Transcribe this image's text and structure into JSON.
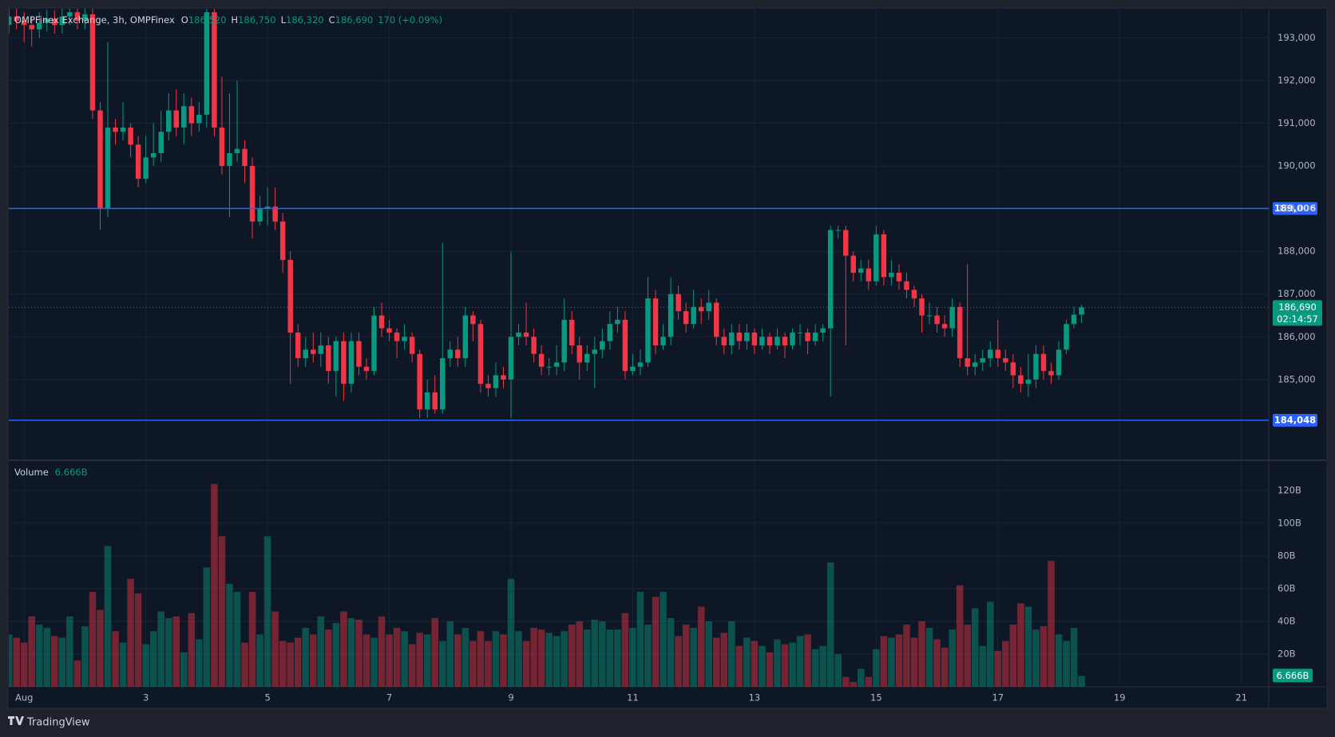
{
  "chart_data": {
    "type": "candlestick",
    "symbol": "OMPFinex Exchange, 3h, OMPFinex",
    "ohlc_labels": [
      {
        "key": "O",
        "text": "186,520"
      },
      {
        "key": "H",
        "text": "186,750"
      },
      {
        "key": "L",
        "text": "186,320"
      },
      {
        "key": "C",
        "text": "186,690"
      }
    ],
    "change": "170 (+0.09%)",
    "volume_title": "Volume",
    "volume_label": "6.666B",
    "last_price_label": "186,690",
    "countdown": "02:14:57",
    "brand": "TradingView",
    "up_color": "#089981",
    "down_color": "#f23645",
    "xlim": [
      0.748,
      21.45
    ],
    "xticks": [
      {
        "value": 1,
        "label": "Aug"
      },
      3,
      5,
      7,
      9,
      11,
      13,
      15,
      17,
      19,
      21
    ],
    "ylim": [
      183130,
      193680
    ],
    "yticks": [
      {
        "value": 185000,
        "label": "185,000"
      },
      {
        "value": 186000,
        "label": "186,000"
      },
      {
        "value": 187000,
        "label": "187,000"
      },
      {
        "value": 188000,
        "label": "188,000"
      },
      {
        "value": 189000,
        "label": "189,000"
      },
      {
        "value": 190000,
        "label": "190,000"
      },
      {
        "value": 191000,
        "label": "191,000"
      },
      {
        "value": 192000,
        "label": "192,000"
      },
      {
        "value": 193000,
        "label": "193,000"
      }
    ],
    "volume_ylim": [
      0,
      138
    ],
    "volume_yticks": [
      {
        "value": 20,
        "label": "20B"
      },
      {
        "value": 40,
        "label": "40B"
      },
      {
        "value": 60,
        "label": "60B"
      },
      {
        "value": 80,
        "label": "80B"
      },
      {
        "value": 100,
        "label": "100B"
      },
      {
        "value": 120,
        "label": "120B"
      }
    ],
    "levels": [
      {
        "value": 189006,
        "label": "189,006",
        "color": "#2962ff"
      },
      {
        "value": 184048,
        "label": "184,048",
        "color": "#2962ff"
      }
    ],
    "grid": true,
    "x": [
      0.75,
      0.875,
      1,
      1.125,
      1.25,
      1.375,
      1.5,
      1.625,
      1.75,
      1.875,
      2,
      2.125,
      2.25,
      2.375,
      2.5,
      2.625,
      2.75,
      2.875,
      3,
      3.125,
      3.25,
      3.375,
      3.5,
      3.625,
      3.75,
      3.875,
      4,
      4.125,
      4.25,
      4.375,
      4.5,
      4.625,
      4.75,
      4.875,
      5,
      5.125,
      5.25,
      5.375,
      5.5,
      5.625,
      5.75,
      5.875,
      6,
      6.125,
      6.25,
      6.375,
      6.5,
      6.625,
      6.75,
      6.875,
      7,
      7.125,
      7.25,
      7.375,
      7.5,
      7.625,
      7.75,
      7.875,
      8,
      8.125,
      8.25,
      8.375,
      8.5,
      8.625,
      8.75,
      8.875,
      9,
      9.125,
      9.25,
      9.375,
      9.5,
      9.625,
      9.75,
      9.875,
      10,
      10.125,
      10.25,
      10.375,
      10.5,
      10.625,
      10.75,
      10.875,
      11,
      11.125,
      11.25,
      11.375,
      11.5,
      11.625,
      11.75,
      11.875,
      12,
      12.125,
      12.25,
      12.375,
      12.5,
      12.625,
      12.75,
      12.875,
      13,
      13.125,
      13.25,
      13.375,
      13.5,
      13.625,
      13.75,
      13.875,
      14,
      14.125,
      14.25,
      14.375,
      14.5,
      14.625,
      14.75,
      14.875,
      15,
      15.125,
      15.25,
      15.375,
      15.5,
      15.625,
      15.75,
      15.875,
      16,
      16.125,
      16.25,
      16.375,
      16.5,
      16.625,
      16.75,
      16.875,
      17,
      17.125,
      17.25,
      17.375,
      17.5,
      17.625,
      17.75,
      17.875,
      18,
      18.125,
      18.25,
      18.375
    ],
    "open": [
      193300,
      193500,
      193400,
      193300,
      193200,
      193350,
      193450,
      193300,
      193500,
      193600,
      193400,
      193550,
      191300,
      189000,
      190900,
      190800,
      190900,
      190500,
      189700,
      190200,
      190300,
      190800,
      191300,
      190900,
      191400,
      191000,
      191200,
      193600,
      190900,
      190000,
      190300,
      190400,
      190000,
      188700,
      189000,
      189050,
      188700,
      187800,
      186100,
      185500,
      185700,
      185600,
      185800,
      185200,
      185900,
      184900,
      185900,
      185300,
      185200,
      186500,
      186200,
      186100,
      185900,
      186000,
      185600,
      184300,
      184700,
      184300,
      185500,
      185700,
      185500,
      186500,
      186300,
      184900,
      184800,
      185100,
      185000,
      186000,
      186100,
      186000,
      185600,
      185300,
      185300,
      185400,
      186400,
      185800,
      185400,
      185600,
      185700,
      185900,
      186300,
      186400,
      185200,
      185300,
      185400,
      186900,
      185800,
      186000,
      187000,
      186600,
      186300,
      186700,
      186600,
      186800,
      186000,
      185800,
      186100,
      185900,
      186100,
      185800,
      186000,
      185800,
      186000,
      185800,
      186100,
      186100,
      185900,
      186100,
      186200,
      188500,
      188500,
      187900,
      187500,
      187600,
      187300,
      188400,
      187400,
      187500,
      187300,
      187100,
      186900,
      186500,
      186500,
      186300,
      186200,
      186700,
      185500,
      185300,
      185400,
      185500,
      185700,
      185500,
      185400,
      185100,
      184900,
      185000,
      185600,
      185200,
      185100,
      185700,
      186300,
      186520
    ],
    "high": [
      193700,
      193700,
      193600,
      193500,
      193600,
      193650,
      193650,
      193700,
      193800,
      193800,
      193750,
      193750,
      191500,
      192900,
      191100,
      191500,
      191000,
      190700,
      190700,
      191000,
      191300,
      191700,
      191800,
      191700,
      191600,
      191500,
      193800,
      193800,
      192100,
      191700,
      192000,
      190600,
      190200,
      189300,
      189500,
      189500,
      188900,
      188000,
      186300,
      186000,
      186100,
      186100,
      186000,
      186000,
      186100,
      186100,
      186100,
      185500,
      186700,
      186800,
      186400,
      186200,
      186300,
      186100,
      185700,
      185000,
      185100,
      188200,
      185900,
      186000,
      186700,
      186600,
      186400,
      185100,
      185400,
      185300,
      188000,
      186300,
      186800,
      186200,
      185800,
      185500,
      185800,
      186900,
      186600,
      186000,
      185800,
      186000,
      186200,
      186600,
      186700,
      186600,
      185600,
      185700,
      187400,
      187100,
      186300,
      187400,
      187200,
      186800,
      187100,
      186900,
      187100,
      186900,
      186200,
      186300,
      186300,
      186300,
      186200,
      186200,
      186100,
      186200,
      186100,
      186200,
      186300,
      186200,
      186300,
      186300,
      188600,
      188600,
      188600,
      188000,
      187800,
      187800,
      188600,
      188500,
      187800,
      187700,
      187500,
      187200,
      187000,
      186800,
      186700,
      186500,
      186900,
      186800,
      187700,
      185600,
      185700,
      185900,
      186400,
      185700,
      185600,
      185300,
      185600,
      185800,
      185800,
      185400,
      185900,
      186400,
      186700,
      186750
    ],
    "low": [
      193100,
      193200,
      192900,
      192800,
      193000,
      193150,
      193100,
      193100,
      193300,
      193200,
      193200,
      191100,
      188500,
      188800,
      190500,
      190600,
      190200,
      189500,
      189600,
      190000,
      190100,
      190600,
      190700,
      190500,
      190700,
      190800,
      190900,
      190700,
      189800,
      188800,
      190100,
      189600,
      188300,
      188600,
      188600,
      188500,
      187500,
      184900,
      185300,
      185300,
      185400,
      185300,
      184900,
      184600,
      184500,
      184700,
      185100,
      185000,
      185100,
      186000,
      185900,
      185500,
      185700,
      185400,
      184100,
      184100,
      184200,
      184200,
      185300,
      185300,
      185300,
      185900,
      184700,
      184600,
      184600,
      184800,
      184100,
      185800,
      185800,
      185400,
      185100,
      185100,
      185100,
      185200,
      185600,
      185000,
      185200,
      184800,
      185500,
      185700,
      186100,
      185000,
      185100,
      185100,
      185300,
      185600,
      185700,
      185800,
      186400,
      186100,
      186200,
      186300,
      186400,
      185800,
      185600,
      185600,
      185700,
      185700,
      185600,
      185700,
      185600,
      185700,
      185500,
      185700,
      185800,
      185600,
      185800,
      185900,
      184600,
      188300,
      185800,
      187300,
      187300,
      187100,
      187200,
      187200,
      187200,
      187100,
      186900,
      186700,
      186100,
      186300,
      186100,
      186000,
      186000,
      185300,
      185100,
      185100,
      185200,
      185300,
      185300,
      185200,
      184800,
      184700,
      184600,
      184800,
      185000,
      184900,
      185000,
      185600,
      186200,
      186320
    ],
    "close": [
      193500,
      193400,
      193300,
      193200,
      193350,
      193450,
      193300,
      193500,
      193600,
      193400,
      193550,
      191300,
      189000,
      190900,
      190800,
      190900,
      190500,
      189700,
      190200,
      190300,
      190800,
      191300,
      190900,
      191400,
      191000,
      191200,
      193600,
      190900,
      190000,
      190300,
      190400,
      190000,
      188700,
      189000,
      189050,
      188700,
      187800,
      186100,
      185500,
      185700,
      185600,
      185800,
      185200,
      185900,
      184900,
      185900,
      185300,
      185200,
      186500,
      186200,
      186100,
      185900,
      186000,
      185600,
      184300,
      184700,
      184300,
      185500,
      185700,
      185500,
      186500,
      186300,
      184900,
      184800,
      185100,
      185000,
      186000,
      186100,
      186000,
      185600,
      185300,
      185300,
      185400,
      186400,
      185800,
      185400,
      185600,
      185700,
      185900,
      186300,
      186400,
      185200,
      185300,
      185400,
      186900,
      185800,
      186000,
      187000,
      186600,
      186300,
      186700,
      186600,
      186800,
      186000,
      185800,
      186100,
      185900,
      186100,
      185800,
      186000,
      185800,
      186000,
      185800,
      186100,
      186100,
      185900,
      186100,
      186200,
      188500,
      188500,
      187900,
      187500,
      187600,
      187300,
      188400,
      187400,
      187500,
      187300,
      187100,
      186900,
      186500,
      186500,
      186300,
      186200,
      186700,
      185500,
      185300,
      185400,
      185500,
      185700,
      185500,
      185400,
      185100,
      184900,
      185000,
      185600,
      185200,
      185100,
      185700,
      186300,
      186520,
      186690
    ],
    "volume": [
      32,
      30,
      27,
      43,
      38,
      36,
      31,
      30,
      43,
      16,
      37,
      58,
      47,
      86,
      34,
      27,
      66,
      57,
      26,
      34,
      46,
      42,
      43,
      21,
      45,
      29,
      73,
      124,
      92,
      63,
      58,
      27,
      58,
      32,
      92,
      46,
      28,
      27,
      30,
      36,
      32,
      43,
      35,
      39,
      46,
      42,
      41,
      32,
      30,
      43,
      32,
      36,
      34,
      26,
      33,
      32,
      42,
      28,
      40,
      32,
      36,
      28,
      34,
      28,
      34,
      32,
      66,
      34,
      28,
      36,
      35,
      33,
      31,
      34,
      38,
      40,
      35,
      41,
      40,
      35,
      35,
      45,
      36,
      58,
      38,
      55,
      58,
      42,
      31,
      38,
      36,
      49,
      40,
      30,
      33,
      40,
      25,
      30,
      28,
      25,
      21,
      29,
      26,
      27,
      31,
      32,
      23,
      25,
      76,
      20,
      6,
      3,
      11,
      6,
      23,
      31,
      30,
      32,
      38,
      30,
      40,
      36,
      29,
      24,
      35,
      62,
      38,
      48,
      25,
      52,
      22,
      28,
      38,
      51,
      49,
      35,
      37,
      77,
      32,
      28,
      36,
      6.666
    ]
  }
}
